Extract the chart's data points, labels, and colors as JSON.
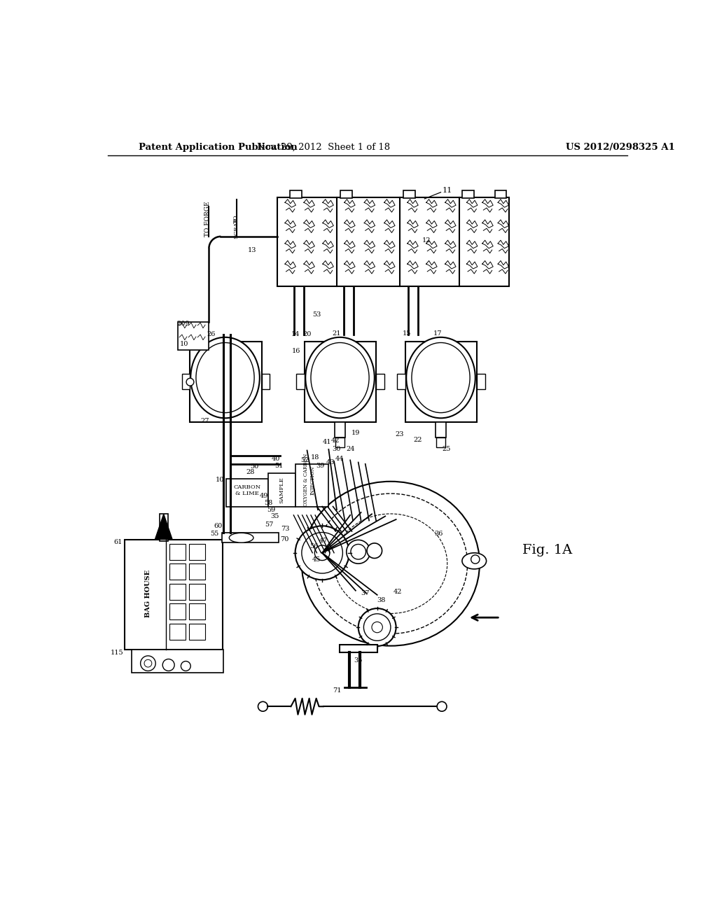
{
  "bg_color": "#ffffff",
  "header_left": "Patent Application Publication",
  "header_mid": "Nov. 29, 2012  Sheet 1 of 18",
  "header_right": "US 2012/0298325 A1",
  "fig_label": "Fig. 1A",
  "header_fontsize": 9.5
}
